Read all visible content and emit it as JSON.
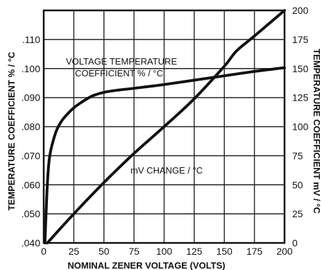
{
  "chart_data": {
    "type": "line",
    "xlabel": "NOMINAL ZENER VOLTAGE (VOLTS)",
    "ylabel_left": "TEMPERATURE COEFFICIENT % / °C",
    "ylabel_right": "TEMPERATURE COEFFICIENT mV / °C",
    "x_ticks": [
      "0",
      "25",
      "50",
      "75",
      "100",
      "125",
      "150",
      "175",
      "200"
    ],
    "y_left_ticks": [
      ".040",
      ".050",
      ".060",
      ".070",
      ".080",
      ".090",
      ".100",
      ".110"
    ],
    "y_right_ticks": [
      "0",
      "25",
      "50",
      "75",
      "100",
      "125",
      "150",
      "175",
      "200"
    ],
    "xlim": [
      0,
      200
    ],
    "ylim_left": [
      0.04,
      0.12
    ],
    "ylim_right": [
      0,
      200
    ],
    "grid": true,
    "series": [
      {
        "name": "VOLTAGE TEMPERATURE COEFFICIENT % / °C",
        "axis": "left",
        "x": [
          1,
          3,
          5,
          10,
          15,
          20,
          25,
          30,
          40,
          50,
          60,
          75,
          100,
          125,
          150,
          175,
          200
        ],
        "y": [
          0.04,
          0.06,
          0.07,
          0.078,
          0.082,
          0.0845,
          0.0865,
          0.088,
          0.0905,
          0.0918,
          0.0925,
          0.0932,
          0.0945,
          0.096,
          0.0975,
          0.099,
          0.1003
        ]
      },
      {
        "name": "mV CHANGE / °C",
        "axis": "right",
        "x": [
          3,
          10,
          25,
          50,
          75,
          100,
          125,
          150,
          160,
          175,
          200
        ],
        "y": [
          0,
          8,
          25,
          52,
          77,
          100,
          124,
          152,
          165,
          178,
          200
        ]
      }
    ],
    "annotations": [
      {
        "lines": [
          "VOLTAGE TEMPERATURE",
          "COEFFICIENT % / °C"
        ]
      },
      {
        "lines": [
          "mV CHANGE / °C"
        ]
      }
    ]
  }
}
